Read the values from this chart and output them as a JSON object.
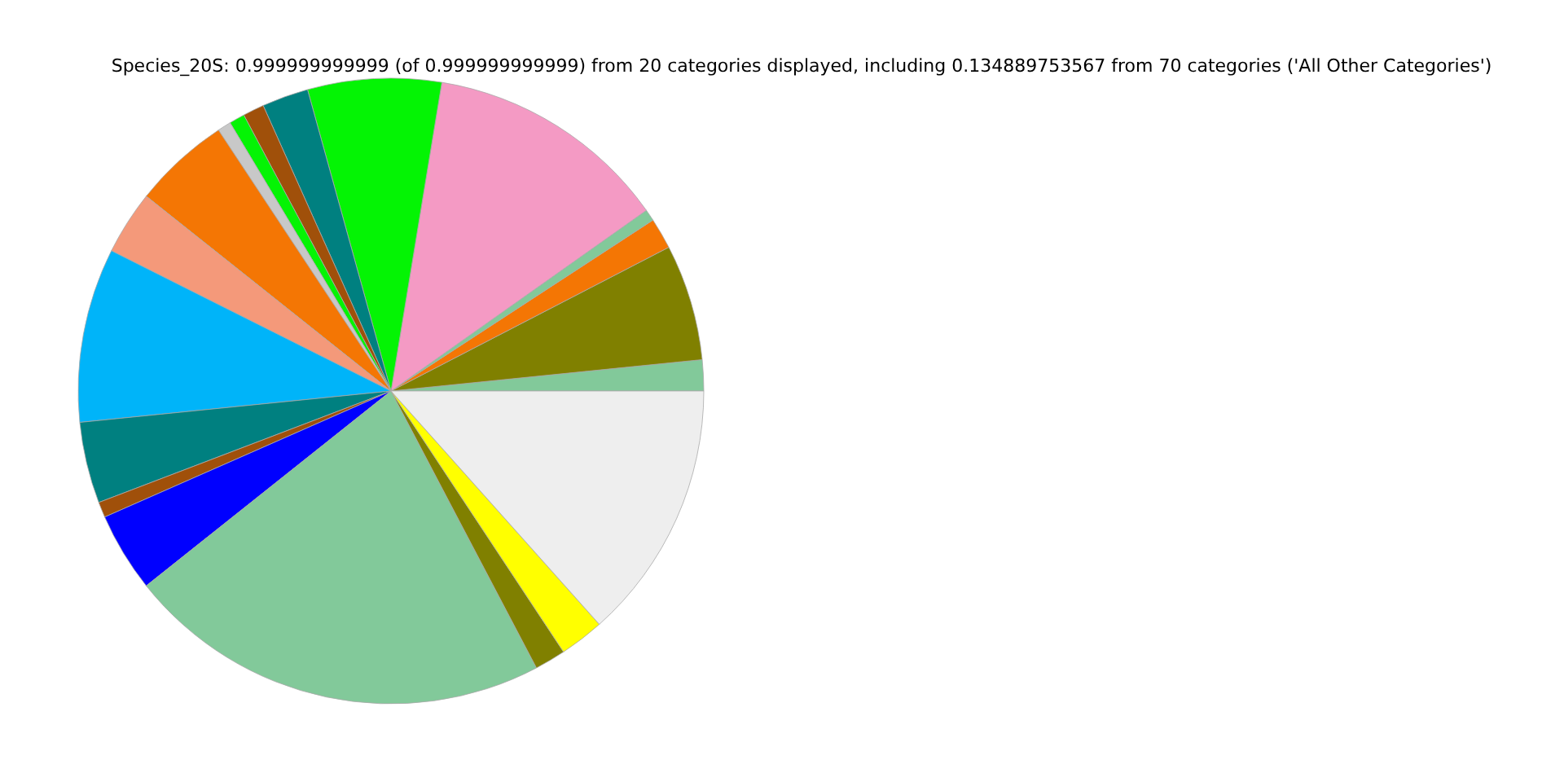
{
  "chart_data": {
    "type": "pie",
    "title": "Species_20S: 0.999999999999 (of 0.999999999999) from 20 categories displayed, including 0.134889753567 from 70 categories ('All Other Categories')",
    "categories": [
      null,
      null,
      null,
      null,
      null,
      null,
      null,
      null,
      null,
      null,
      null,
      null,
      null,
      null,
      null,
      null,
      null,
      null,
      null,
      null
    ],
    "values": [
      1.6,
      6.0,
      1.6,
      0.6,
      12.6,
      6.9,
      2.4,
      1.1,
      0.8,
      0.7,
      5.0,
      3.3,
      9.0,
      4.2,
      0.8,
      4.1,
      22.0,
      1.6,
      2.3,
      13.4
    ],
    "colors": [
      "#82c99a",
      "#808000",
      "#f47604",
      "#82c99a",
      "#f49ac4",
      "#04f404",
      "#008080",
      "#a0500a",
      "#04f404",
      "#c8c8c8",
      "#f47604",
      "#f4997a",
      "#00b4f9",
      "#008080",
      "#a0500a",
      "#0000ff",
      "#82c99a",
      "#808000",
      "#ffff00",
      "#eeeeee"
    ]
  }
}
